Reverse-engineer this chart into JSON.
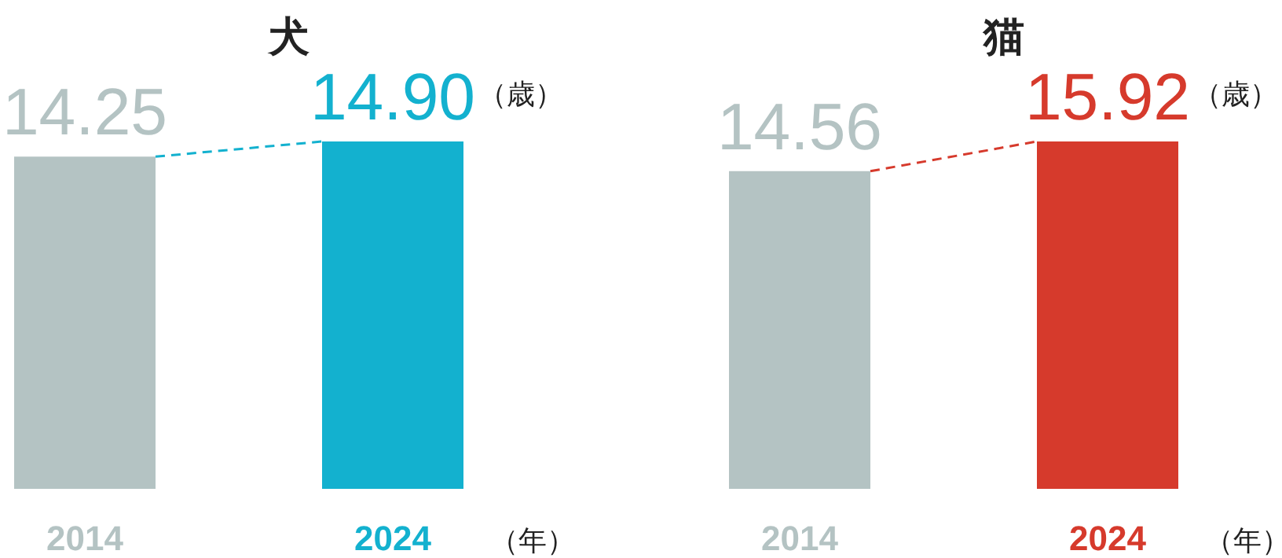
{
  "chart_data": [
    {
      "type": "bar",
      "title": "犬",
      "categories": [
        "2014",
        "2024"
      ],
      "data_labels": true,
      "annotations": [
        "（歳）",
        "（年）"
      ],
      "values": [
        14.25,
        14.9
      ],
      "value_labels": [
        "14.25",
        "14.90"
      ],
      "colors": [
        "#b4c3c3",
        "#13b1cf"
      ]
    },
    {
      "type": "bar",
      "title": "猫",
      "categories": [
        "2014",
        "2024"
      ],
      "data_labels": true,
      "annotations": [
        "（歳）",
        "（年）"
      ],
      "values": [
        14.56,
        15.92
      ],
      "value_labels": [
        "14.56",
        "15.92"
      ],
      "colors": [
        "#b4c3c3",
        "#d63a2c"
      ]
    }
  ]
}
